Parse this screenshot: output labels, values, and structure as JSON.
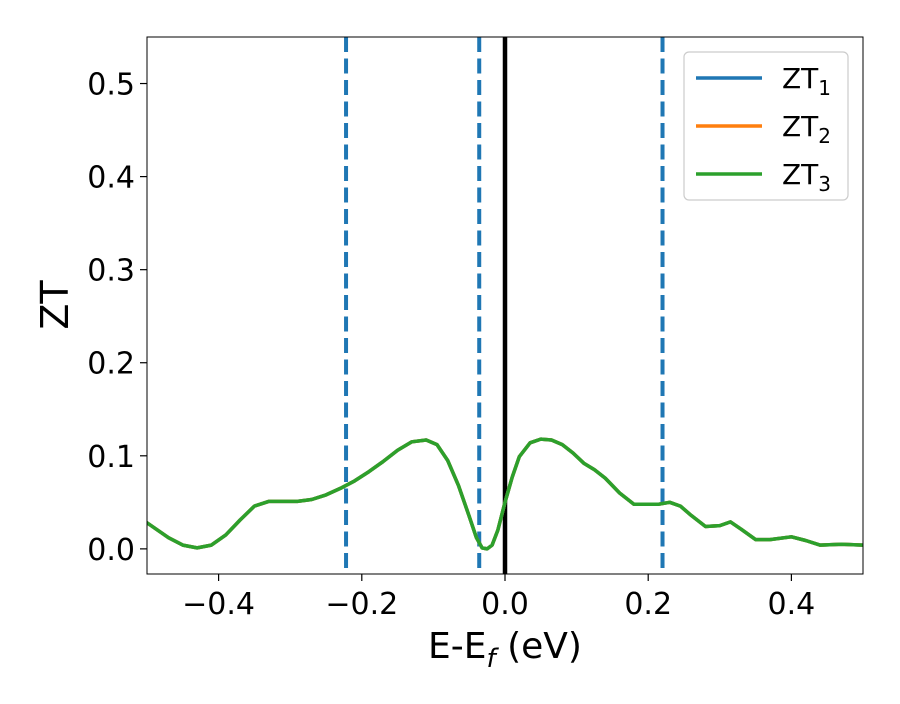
{
  "chart_data": {
    "type": "line",
    "xlabel": {
      "main": "E-E",
      "sub": "f",
      "tail": " (eV)"
    },
    "ylabel": "ZT",
    "xlim": [
      -0.5,
      0.5
    ],
    "ylim": [
      -0.027,
      0.55
    ],
    "grid": false,
    "legend_position": "top-right",
    "x_ticks": [
      {
        "value": -0.4,
        "label": "−0.4"
      },
      {
        "value": -0.2,
        "label": "−0.2"
      },
      {
        "value": 0.0,
        "label": "0.0"
      },
      {
        "value": 0.2,
        "label": "0.2"
      },
      {
        "value": 0.4,
        "label": "0.4"
      }
    ],
    "y_ticks": [
      {
        "value": 0.0,
        "label": "0.0"
      },
      {
        "value": 0.1,
        "label": "0.1"
      },
      {
        "value": 0.2,
        "label": "0.2"
      },
      {
        "value": 0.3,
        "label": "0.3"
      },
      {
        "value": 0.4,
        "label": "0.4"
      },
      {
        "value": 0.5,
        "label": "0.5"
      }
    ],
    "vlines": [
      {
        "x": -0.222,
        "style": "dashed",
        "color": "#1f77b4"
      },
      {
        "x": -0.036,
        "style": "dashed",
        "color": "#1f77b4"
      },
      {
        "x": 0.0,
        "style": "solid",
        "color": "#000000"
      },
      {
        "x": 0.22,
        "style": "dashed",
        "color": "#1f77b4"
      }
    ],
    "series": [
      {
        "name": "ZT",
        "sub": "1",
        "color": "#1f77b4",
        "x": [
          -0.5,
          -0.47,
          -0.45,
          -0.43,
          -0.41,
          -0.39,
          -0.37,
          -0.35,
          -0.33,
          -0.31,
          -0.29,
          -0.27,
          -0.25,
          -0.23,
          -0.21,
          -0.19,
          -0.17,
          -0.15,
          -0.13,
          -0.11,
          -0.095,
          -0.08,
          -0.065,
          -0.05,
          -0.04,
          -0.032,
          -0.025,
          -0.018,
          -0.01,
          0.0,
          0.01,
          0.02,
          0.035,
          0.05,
          0.065,
          0.08,
          0.095,
          0.11,
          0.125,
          0.14,
          0.16,
          0.18,
          0.2,
          0.215,
          0.23,
          0.245,
          0.26,
          0.28,
          0.3,
          0.315,
          0.33,
          0.35,
          0.37,
          0.4,
          0.42,
          0.44,
          0.47,
          0.5
        ],
        "y": [
          0.028,
          0.012,
          0.004,
          0.001,
          0.004,
          0.015,
          0.031,
          0.046,
          0.051,
          0.051,
          0.051,
          0.053,
          0.058,
          0.065,
          0.073,
          0.083,
          0.094,
          0.106,
          0.115,
          0.117,
          0.112,
          0.095,
          0.068,
          0.035,
          0.012,
          0.001,
          0.0,
          0.004,
          0.02,
          0.05,
          0.077,
          0.099,
          0.114,
          0.118,
          0.117,
          0.112,
          0.103,
          0.092,
          0.085,
          0.076,
          0.06,
          0.048,
          0.048,
          0.048,
          0.05,
          0.046,
          0.036,
          0.024,
          0.025,
          0.029,
          0.021,
          0.01,
          0.01,
          0.013,
          0.009,
          0.004,
          0.005,
          0.004
        ]
      },
      {
        "name": "ZT",
        "sub": "2",
        "color": "#ff7f0e",
        "x": [
          -0.5,
          -0.47,
          -0.45,
          -0.43,
          -0.41,
          -0.39,
          -0.37,
          -0.35,
          -0.33,
          -0.31,
          -0.29,
          -0.27,
          -0.25,
          -0.23,
          -0.21,
          -0.19,
          -0.17,
          -0.15,
          -0.13,
          -0.11,
          -0.095,
          -0.08,
          -0.065,
          -0.05,
          -0.04,
          -0.032,
          -0.025,
          -0.018,
          -0.01,
          0.0,
          0.01,
          0.02,
          0.035,
          0.05,
          0.065,
          0.08,
          0.095,
          0.11,
          0.125,
          0.14,
          0.16,
          0.18,
          0.2,
          0.215,
          0.23,
          0.245,
          0.26,
          0.28,
          0.3,
          0.315,
          0.33,
          0.35,
          0.37,
          0.4,
          0.42,
          0.44,
          0.47,
          0.5
        ],
        "y": [
          0.028,
          0.012,
          0.004,
          0.001,
          0.004,
          0.015,
          0.031,
          0.046,
          0.051,
          0.051,
          0.051,
          0.053,
          0.058,
          0.065,
          0.073,
          0.083,
          0.094,
          0.106,
          0.115,
          0.117,
          0.112,
          0.095,
          0.068,
          0.035,
          0.012,
          0.001,
          0.0,
          0.004,
          0.02,
          0.05,
          0.077,
          0.099,
          0.114,
          0.118,
          0.117,
          0.112,
          0.103,
          0.092,
          0.085,
          0.076,
          0.06,
          0.048,
          0.048,
          0.048,
          0.05,
          0.046,
          0.036,
          0.024,
          0.025,
          0.029,
          0.021,
          0.01,
          0.01,
          0.013,
          0.009,
          0.004,
          0.005,
          0.004
        ]
      },
      {
        "name": "ZT",
        "sub": "3",
        "color": "#2ca02c",
        "x": [
          -0.5,
          -0.47,
          -0.45,
          -0.43,
          -0.41,
          -0.39,
          -0.37,
          -0.35,
          -0.33,
          -0.31,
          -0.29,
          -0.27,
          -0.25,
          -0.23,
          -0.21,
          -0.19,
          -0.17,
          -0.15,
          -0.13,
          -0.11,
          -0.095,
          -0.08,
          -0.065,
          -0.05,
          -0.04,
          -0.032,
          -0.025,
          -0.018,
          -0.01,
          0.0,
          0.01,
          0.02,
          0.035,
          0.05,
          0.065,
          0.08,
          0.095,
          0.11,
          0.125,
          0.14,
          0.16,
          0.18,
          0.2,
          0.215,
          0.23,
          0.245,
          0.26,
          0.28,
          0.3,
          0.315,
          0.33,
          0.35,
          0.37,
          0.4,
          0.42,
          0.44,
          0.47,
          0.5
        ],
        "y": [
          0.028,
          0.012,
          0.004,
          0.001,
          0.004,
          0.015,
          0.031,
          0.046,
          0.051,
          0.051,
          0.051,
          0.053,
          0.058,
          0.065,
          0.073,
          0.083,
          0.094,
          0.106,
          0.115,
          0.117,
          0.112,
          0.095,
          0.068,
          0.035,
          0.012,
          0.001,
          0.0,
          0.004,
          0.02,
          0.05,
          0.077,
          0.099,
          0.114,
          0.118,
          0.117,
          0.112,
          0.103,
          0.092,
          0.085,
          0.076,
          0.06,
          0.048,
          0.048,
          0.048,
          0.05,
          0.046,
          0.036,
          0.024,
          0.025,
          0.029,
          0.021,
          0.01,
          0.01,
          0.013,
          0.009,
          0.004,
          0.005,
          0.004
        ]
      }
    ]
  }
}
